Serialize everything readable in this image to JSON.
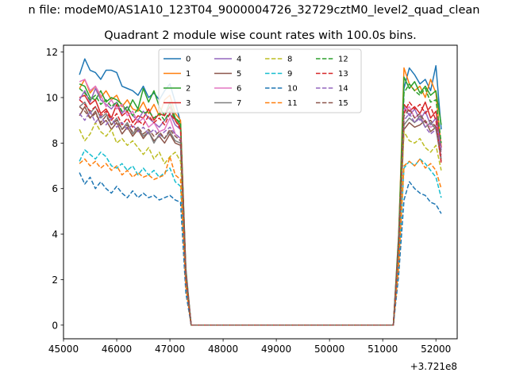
{
  "figure": {
    "suptitle": "n file: modeM0/AS1A10_123T04_9000004726_32729cztM0_level2_quad_clean",
    "offset_label": "+3.721e8"
  },
  "chart_data": {
    "type": "line",
    "title": "Quadrant 2 module wise count rates with 100.0s bins.",
    "xlabel": "",
    "ylabel": "",
    "xlim": [
      45000,
      52400
    ],
    "ylim": [
      -0.6,
      12.3
    ],
    "x_offset": "+3.721e8",
    "x_ticks": [
      45000,
      46000,
      47000,
      48000,
      49000,
      50000,
      51000,
      52000
    ],
    "x_tick_labels": [
      "45000",
      "46000",
      "47000",
      "48000",
      "49000",
      "50000",
      "51000",
      "52000"
    ],
    "y_ticks": [
      0,
      2,
      4,
      6,
      8,
      10,
      12
    ],
    "y_tick_labels": [
      "0",
      "2",
      "4",
      "6",
      "8",
      "10",
      "12"
    ],
    "grid": false,
    "legend": {
      "placement": "top-center",
      "columns": 4
    },
    "x": [
      45300,
      45400,
      45500,
      45600,
      45700,
      45800,
      45900,
      46000,
      46100,
      46200,
      46300,
      46400,
      46500,
      46600,
      46700,
      46800,
      46900,
      47000,
      47100,
      47200,
      47300,
      47400,
      51100,
      51200,
      51300,
      51400,
      51500,
      51600,
      51700,
      51800,
      51900,
      52000,
      52100
    ],
    "series": [
      {
        "name": "0",
        "color": "#1f77b4",
        "dash": "solid",
        "values": [
          11.0,
          11.7,
          11.2,
          11.1,
          10.8,
          11.2,
          11.2,
          11.1,
          10.5,
          10.4,
          10.3,
          10.1,
          10.5,
          10.0,
          10.2,
          9.9,
          10.3,
          10.6,
          9.8,
          8.9,
          2.5,
          0,
          0,
          0,
          4.0,
          10.4,
          11.3,
          11.0,
          10.6,
          10.8,
          10.3,
          11.4,
          8.6
        ]
      },
      {
        "name": "1",
        "color": "#ff7f0e",
        "dash": "solid",
        "values": [
          10.4,
          10.8,
          10.2,
          10.5,
          10.0,
          10.3,
          9.9,
          10.1,
          9.6,
          9.9,
          9.5,
          9.4,
          9.8,
          9.3,
          9.7,
          9.2,
          9.9,
          10.1,
          9.3,
          9.0,
          2.4,
          0,
          0,
          0,
          3.9,
          11.3,
          10.6,
          10.3,
          10.5,
          10.0,
          10.8,
          10.2,
          7.8
        ]
      },
      {
        "name": "2",
        "color": "#2ca02c",
        "dash": "solid",
        "values": [
          10.6,
          10.5,
          10.0,
          9.9,
          10.3,
          9.8,
          10.0,
          9.9,
          9.7,
          9.4,
          9.9,
          9.5,
          10.4,
          9.8,
          10.3,
          9.6,
          9.2,
          9.8,
          9.1,
          8.8,
          2.3,
          0,
          0,
          0,
          3.8,
          10.9,
          10.4,
          10.7,
          10.2,
          10.5,
          10.1,
          10.3,
          8.8
        ]
      },
      {
        "name": "3",
        "color": "#d62728",
        "dash": "solid",
        "values": [
          10.0,
          10.1,
          9.7,
          9.9,
          9.3,
          9.5,
          9.1,
          9.7,
          9.2,
          9.4,
          8.9,
          9.2,
          9.1,
          9.5,
          9.0,
          9.3,
          9.2,
          9.6,
          9.0,
          8.7,
          2.3,
          0,
          0,
          0,
          3.7,
          9.7,
          9.4,
          9.6,
          9.3,
          9.8,
          9.1,
          9.4,
          7.8
        ]
      },
      {
        "name": "4",
        "color": "#9467bd",
        "dash": "solid",
        "values": [
          9.9,
          10.3,
          9.8,
          10.4,
          9.9,
          9.7,
          9.5,
          9.8,
          9.3,
          9.6,
          9.2,
          9.0,
          9.4,
          9.1,
          8.9,
          8.7,
          9.0,
          9.3,
          8.8,
          8.6,
          2.3,
          0,
          0,
          0,
          3.6,
          9.6,
          9.2,
          9.5,
          9.0,
          9.4,
          8.8,
          9.1,
          7.7
        ]
      },
      {
        "name": "5",
        "color": "#8c564b",
        "dash": "solid",
        "values": [
          9.2,
          9.6,
          9.1,
          9.4,
          8.8,
          9.0,
          8.6,
          8.9,
          8.4,
          8.7,
          8.3,
          8.6,
          8.2,
          8.5,
          8.1,
          8.3,
          8.0,
          8.4,
          8.0,
          7.9,
          2.1,
          0,
          0,
          0,
          3.3,
          8.6,
          8.9,
          8.7,
          8.8,
          9.0,
          8.5,
          8.7,
          7.2
        ]
      },
      {
        "name": "6",
        "color": "#e377c2",
        "dash": "solid",
        "values": [
          10.7,
          10.8,
          10.3,
          10.5,
          10.1,
          9.6,
          9.9,
          9.5,
          9.7,
          9.2,
          9.4,
          8.9,
          9.1,
          8.7,
          8.9,
          8.5,
          8.6,
          9.1,
          8.4,
          8.2,
          2.2,
          0,
          0,
          0,
          3.6,
          9.4,
          9.6,
          9.1,
          9.3,
          8.9,
          8.7,
          8.8,
          7.4
        ]
      },
      {
        "name": "7",
        "color": "#7f7f7f",
        "dash": "solid",
        "values": [
          9.6,
          9.8,
          9.3,
          9.6,
          9.1,
          9.3,
          8.8,
          9.1,
          8.6,
          8.9,
          8.4,
          8.7,
          8.3,
          8.5,
          8.0,
          8.4,
          8.2,
          8.5,
          8.1,
          8.0,
          2.1,
          0,
          0,
          0,
          3.4,
          8.8,
          9.1,
          8.9,
          9.2,
          8.7,
          8.9,
          8.6,
          7.3
        ]
      },
      {
        "name": "8",
        "color": "#bcbd22",
        "dash": "dashed",
        "values": [
          8.6,
          8.1,
          8.4,
          8.9,
          8.5,
          8.3,
          8.6,
          8.0,
          8.2,
          7.9,
          8.1,
          7.8,
          7.5,
          7.8,
          7.3,
          7.6,
          7.1,
          7.4,
          7.6,
          7.2,
          1.9,
          0,
          0,
          0,
          3.1,
          8.5,
          8.1,
          8.0,
          8.2,
          7.8,
          7.6,
          7.9,
          6.8
        ]
      },
      {
        "name": "9",
        "color": "#17becf",
        "dash": "dashed",
        "values": [
          7.2,
          7.7,
          7.5,
          7.3,
          7.6,
          7.4,
          7.0,
          6.9,
          7.1,
          6.8,
          7.0,
          6.6,
          6.9,
          6.6,
          6.8,
          6.5,
          6.7,
          6.9,
          6.3,
          6.1,
          1.7,
          0,
          0,
          0,
          2.5,
          6.9,
          7.2,
          7.0,
          7.3,
          7.1,
          6.8,
          6.5,
          5.6
        ]
      },
      {
        "name": "10",
        "color": "#1f77b4",
        "dash": "dashed",
        "values": [
          6.7,
          6.2,
          6.5,
          6.0,
          6.3,
          6.0,
          5.8,
          6.1,
          5.8,
          5.6,
          5.9,
          5.6,
          5.8,
          5.6,
          5.7,
          5.5,
          5.6,
          5.7,
          5.5,
          5.4,
          1.4,
          0,
          0,
          0,
          2.2,
          5.5,
          6.3,
          6.0,
          5.8,
          5.7,
          5.4,
          5.3,
          4.9
        ]
      },
      {
        "name": "11",
        "color": "#ff7f0e",
        "dash": "dashed",
        "values": [
          7.1,
          7.3,
          7.0,
          7.2,
          6.9,
          7.1,
          6.8,
          7.0,
          6.6,
          6.8,
          6.5,
          6.7,
          6.5,
          6.6,
          6.4,
          6.5,
          6.6,
          7.4,
          6.6,
          6.4,
          1.7,
          0,
          0,
          0,
          2.6,
          7.0,
          7.2,
          7.0,
          7.3,
          6.9,
          7.1,
          6.8,
          6.0
        ]
      },
      {
        "name": "12",
        "color": "#2ca02c",
        "dash": "dashed",
        "values": [
          10.4,
          10.2,
          9.9,
          10.1,
          9.7,
          9.9,
          9.6,
          9.8,
          9.4,
          9.6,
          9.2,
          9.5,
          9.3,
          9.4,
          9.1,
          9.3,
          9.0,
          9.4,
          9.1,
          8.9,
          2.3,
          0,
          0,
          0,
          3.8,
          10.2,
          10.6,
          10.3,
          10.1,
          10.4,
          9.8,
          9.9,
          8.0
        ]
      },
      {
        "name": "13",
        "color": "#d62728",
        "dash": "dashed",
        "values": [
          9.9,
          9.7,
          9.4,
          9.6,
          9.2,
          9.4,
          9.0,
          9.3,
          8.8,
          9.1,
          8.7,
          9.0,
          8.8,
          9.2,
          8.9,
          9.1,
          8.8,
          9.3,
          9.0,
          8.6,
          2.2,
          0,
          0,
          0,
          3.6,
          9.3,
          9.8,
          9.5,
          9.7,
          9.3,
          9.6,
          9.0,
          7.1
        ]
      },
      {
        "name": "14",
        "color": "#9467bd",
        "dash": "dashed",
        "values": [
          9.3,
          9.0,
          9.4,
          8.9,
          9.2,
          8.8,
          9.1,
          8.7,
          8.9,
          8.6,
          8.8,
          8.5,
          8.7,
          8.4,
          8.6,
          8.3,
          8.5,
          8.7,
          8.4,
          8.2,
          2.1,
          0,
          0,
          0,
          3.4,
          9.0,
          9.3,
          8.9,
          9.1,
          8.7,
          8.4,
          8.6,
          7.6
        ]
      },
      {
        "name": "15",
        "color": "#8c564b",
        "dash": "dashed",
        "values": [
          9.6,
          9.4,
          9.1,
          9.3,
          8.9,
          9.2,
          8.8,
          9.0,
          8.6,
          8.8,
          8.5,
          8.7,
          8.4,
          8.6,
          8.3,
          8.5,
          8.2,
          8.6,
          8.3,
          8.1,
          2.1,
          0,
          0,
          0,
          3.5,
          9.2,
          9.5,
          9.1,
          9.3,
          8.9,
          9.0,
          8.7,
          7.5
        ]
      }
    ]
  }
}
